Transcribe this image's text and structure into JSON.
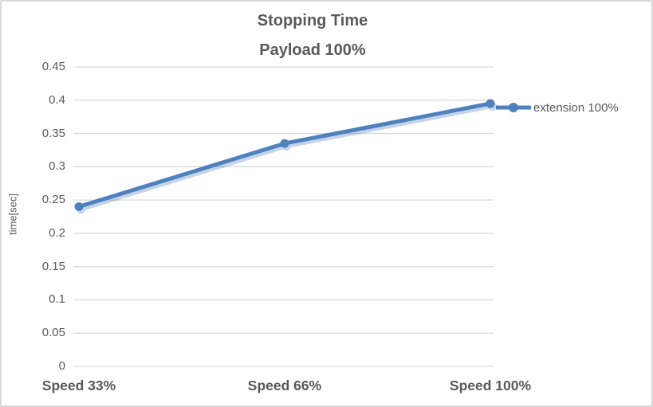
{
  "chart_data": {
    "type": "line",
    "title": "Stopping Time",
    "subtitle": "Payload 100%",
    "categories": [
      "Speed 33%",
      "Speed 66%",
      "Speed 100%"
    ],
    "series": [
      {
        "name": "extension 100%",
        "values": [
          0.24,
          0.335,
          0.395
        ]
      }
    ],
    "xlabel": "",
    "ylabel": "time[sec]",
    "ylim": [
      0,
      0.45
    ],
    "ytick_step": 0.05,
    "grid": true,
    "legend_position": "right",
    "colors": {
      "series": "#4F81BD",
      "series_shadow": "#4F81BD",
      "shadow_opacity": 0.33,
      "text": "#595959",
      "gridline": "#D9D9D9",
      "border": "#D9D9D9",
      "background": "#FFFFFF"
    }
  }
}
